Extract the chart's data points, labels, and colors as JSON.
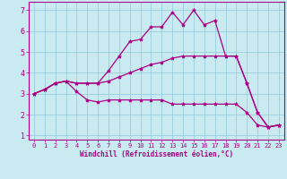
{
  "title": "",
  "xlabel": "Windchill (Refroidissement éolien,°C)",
  "ylabel": "",
  "bg_color": "#c8eaf0",
  "line_color": "#aa0088",
  "marker": "*",
  "xlim": [
    -0.5,
    23.5
  ],
  "ylim": [
    0.8,
    7.4
  ],
  "xticks": [
    0,
    1,
    2,
    3,
    4,
    5,
    6,
    7,
    8,
    9,
    10,
    11,
    12,
    13,
    14,
    15,
    16,
    17,
    18,
    19,
    20,
    21,
    22,
    23
  ],
  "yticks": [
    1,
    2,
    3,
    4,
    5,
    6,
    7
  ],
  "line1_x": [
    0,
    1,
    2,
    3,
    4,
    5,
    6,
    7,
    8,
    9,
    10,
    11,
    12,
    13,
    14,
    15,
    16,
    17,
    18,
    19,
    20,
    21,
    22,
    23
  ],
  "line1_y": [
    3.0,
    3.2,
    3.5,
    3.6,
    3.1,
    2.7,
    2.6,
    2.7,
    2.7,
    2.7,
    2.7,
    2.7,
    2.7,
    2.5,
    2.5,
    2.5,
    2.5,
    2.5,
    2.5,
    2.5,
    2.1,
    1.5,
    1.4,
    1.5
  ],
  "line2_x": [
    0,
    1,
    2,
    3,
    4,
    5,
    6,
    7,
    8,
    9,
    10,
    11,
    12,
    13,
    14,
    15,
    16,
    17,
    18,
    19,
    20,
    21,
    22,
    23
  ],
  "line2_y": [
    3.0,
    3.2,
    3.5,
    3.6,
    3.5,
    3.5,
    3.5,
    4.1,
    4.8,
    5.5,
    5.6,
    6.2,
    6.2,
    6.9,
    6.3,
    7.0,
    6.3,
    6.5,
    4.8,
    4.8,
    3.5,
    2.1,
    1.4,
    1.5
  ],
  "line3_x": [
    0,
    1,
    2,
    3,
    4,
    5,
    6,
    7,
    8,
    9,
    10,
    11,
    12,
    13,
    14,
    15,
    16,
    17,
    18,
    19,
    20,
    21,
    22,
    23
  ],
  "line3_y": [
    3.0,
    3.2,
    3.5,
    3.6,
    3.5,
    3.5,
    3.5,
    3.6,
    3.8,
    4.0,
    4.2,
    4.4,
    4.5,
    4.7,
    4.8,
    4.8,
    4.8,
    4.8,
    4.8,
    4.8,
    3.5,
    2.1,
    1.4,
    1.5
  ],
  "tick_fontsize": 5,
  "xlabel_fontsize": 5.5,
  "grid_color": "#90c8d8",
  "spine_color": "#aa0088"
}
